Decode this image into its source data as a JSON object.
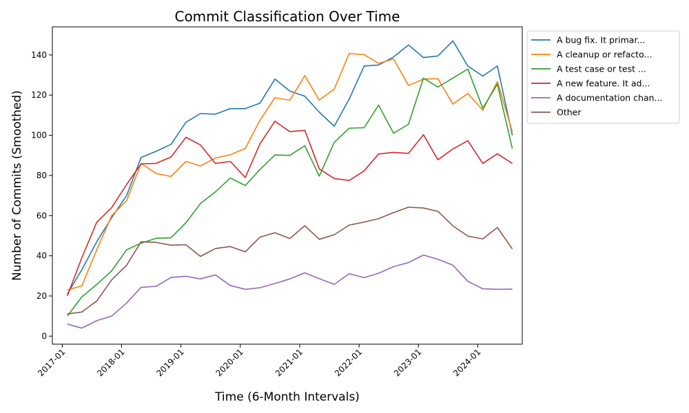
{
  "chart_data": {
    "type": "line",
    "title": "Commit Classification Over Time",
    "xlabel": "Time (6-Month Intervals)",
    "ylabel": "Number of Commits (Smoothed)",
    "ylim": [
      -4,
      154
    ],
    "yticks": [
      0,
      20,
      40,
      60,
      80,
      100,
      120,
      140
    ],
    "x_tick_labels": [
      "2017-01",
      "2018-01",
      "2019-01",
      "2020-01",
      "2021-01",
      "2022-01",
      "2023-01",
      "2024-01"
    ],
    "x_tick_dates": [
      "2017-01-01",
      "2018-01-01",
      "2019-01-01",
      "2020-01-01",
      "2021-01-01",
      "2022-01-01",
      "2023-01-01",
      "2024-01-01"
    ],
    "x_range": [
      "2016-11-01",
      "2024-10-01"
    ],
    "grid": false,
    "legend_position": "outside-top-right",
    "x": [
      "2017-02-01",
      "2017-05-01",
      "2017-08-01",
      "2017-11-01",
      "2018-02-01",
      "2018-05-01",
      "2018-08-01",
      "2018-11-01",
      "2019-02-01",
      "2019-05-01",
      "2019-08-01",
      "2019-11-01",
      "2020-02-01",
      "2020-05-01",
      "2020-08-01",
      "2020-11-01",
      "2021-02-01",
      "2021-05-01",
      "2021-08-01",
      "2021-11-01",
      "2022-02-01",
      "2022-05-01",
      "2022-08-01",
      "2022-11-01",
      "2023-02-01",
      "2023-05-01",
      "2023-08-01",
      "2023-11-01",
      "2024-02-01",
      "2024-05-01",
      "2024-08-01"
    ],
    "series": [
      {
        "name": "A bug fix. It primar...",
        "color": "#1f77b4",
        "values": [
          21,
          33,
          47,
          59,
          70,
          89,
          92,
          95.5,
          106.5,
          110.8,
          110.5,
          113.3,
          113.3,
          116,
          128,
          122,
          119.5,
          111.5,
          104.5,
          118,
          134.5,
          135,
          139,
          145,
          138.7,
          139.5,
          147,
          134.5,
          129.5,
          134.5,
          100
        ]
      },
      {
        "name": "A cleanup or refacto...",
        "color": "#ff7f0e",
        "values": [
          23,
          25,
          43,
          60,
          67.5,
          86,
          81,
          79.5,
          87,
          84.7,
          88.7,
          90.3,
          93.5,
          107.5,
          118.7,
          117.5,
          129.7,
          117.5,
          123,
          140.7,
          140.2,
          135.8,
          138,
          124.8,
          128,
          128.2,
          115.5,
          120.8,
          112.5,
          126.8,
          101.7
        ]
      },
      {
        "name": "A test case or test ...",
        "color": "#2ca02c",
        "values": [
          10,
          19.5,
          25.7,
          32.5,
          43,
          46.3,
          48.7,
          49,
          56.5,
          66,
          71.8,
          78.7,
          75,
          83,
          90.2,
          90,
          94.8,
          79.7,
          96.5,
          103.5,
          103.8,
          115,
          101,
          105.5,
          128.5,
          124,
          128.5,
          133,
          113.5,
          125.5,
          93.3
        ]
      },
      {
        "name": "A new feature. It ad...",
        "color": "#d62728",
        "values": [
          20,
          39,
          56.7,
          64,
          75.5,
          85.8,
          86,
          89.2,
          99,
          95.2,
          86,
          87,
          79,
          95.7,
          107,
          101.8,
          102.5,
          83.3,
          78.5,
          77.5,
          82.3,
          90.7,
          91.5,
          91,
          100.3,
          87.8,
          93.2,
          97.3,
          86,
          90.8,
          86
        ]
      },
      {
        "name": "A documentation chan...",
        "color": "#9467bd",
        "values": [
          6,
          4,
          7.7,
          10,
          16.5,
          24.3,
          24.8,
          29.2,
          29.8,
          28.5,
          30.5,
          25.2,
          23.3,
          24.1,
          26.2,
          28.5,
          31.5,
          28.6,
          25.8,
          31.1,
          29.1,
          31.3,
          34.6,
          36.6,
          40.4,
          38.3,
          35.3,
          27.3,
          23.6,
          23.3,
          23.4
        ]
      },
      {
        "name": "Other",
        "color": "#8c564b",
        "values": [
          11,
          12,
          17.5,
          28,
          35.3,
          47,
          46.7,
          45.3,
          45.5,
          39.7,
          43.6,
          44.6,
          42,
          49.3,
          51.5,
          48.6,
          55,
          48.2,
          50.5,
          55.3,
          56.8,
          58.5,
          61.5,
          64.2,
          63.8,
          62.1,
          54.9,
          49.8,
          48.4,
          54.1,
          43.4
        ]
      }
    ]
  }
}
